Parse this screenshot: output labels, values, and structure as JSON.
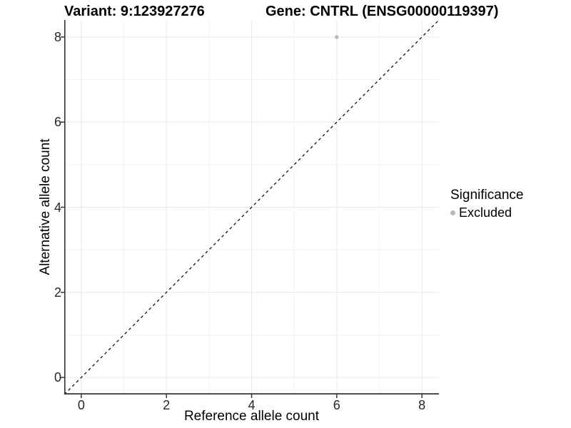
{
  "chart_data": {
    "type": "scatter",
    "title_left": "Variant: 9:123927276",
    "title_right": "Gene: CNTRL (ENSG00000119397)",
    "xlabel": "Reference allele count",
    "ylabel": "Alternative allele count",
    "xlim": [
      -0.4,
      8.4
    ],
    "ylim": [
      -0.4,
      8.4
    ],
    "x_ticks": [
      0,
      2,
      4,
      6,
      8
    ],
    "y_ticks": [
      0,
      2,
      4,
      6,
      8
    ],
    "x_tick_labels": [
      "0",
      "2",
      "4",
      "6",
      "8"
    ],
    "y_tick_labels": [
      "0",
      "2",
      "4",
      "6",
      "8"
    ],
    "minor_ticks": [
      1,
      3,
      5,
      7
    ],
    "grid": true,
    "points": [
      {
        "x": 6,
        "y": 8,
        "series": "Excluded"
      }
    ],
    "reference_line": {
      "type": "identity",
      "slope": 1,
      "intercept": 0,
      "style": "dashed"
    },
    "legend": {
      "title": "Significance",
      "position": "right",
      "items": [
        {
          "label": "Excluded",
          "color": "#b9b9b9"
        }
      ]
    },
    "colors": {
      "point": "#b9b9b9",
      "grid_major": "#e9e9e9",
      "grid_minor": "#f2f2f2",
      "axis": "#333333",
      "reference_line": "#000000",
      "text": "#000000"
    }
  }
}
